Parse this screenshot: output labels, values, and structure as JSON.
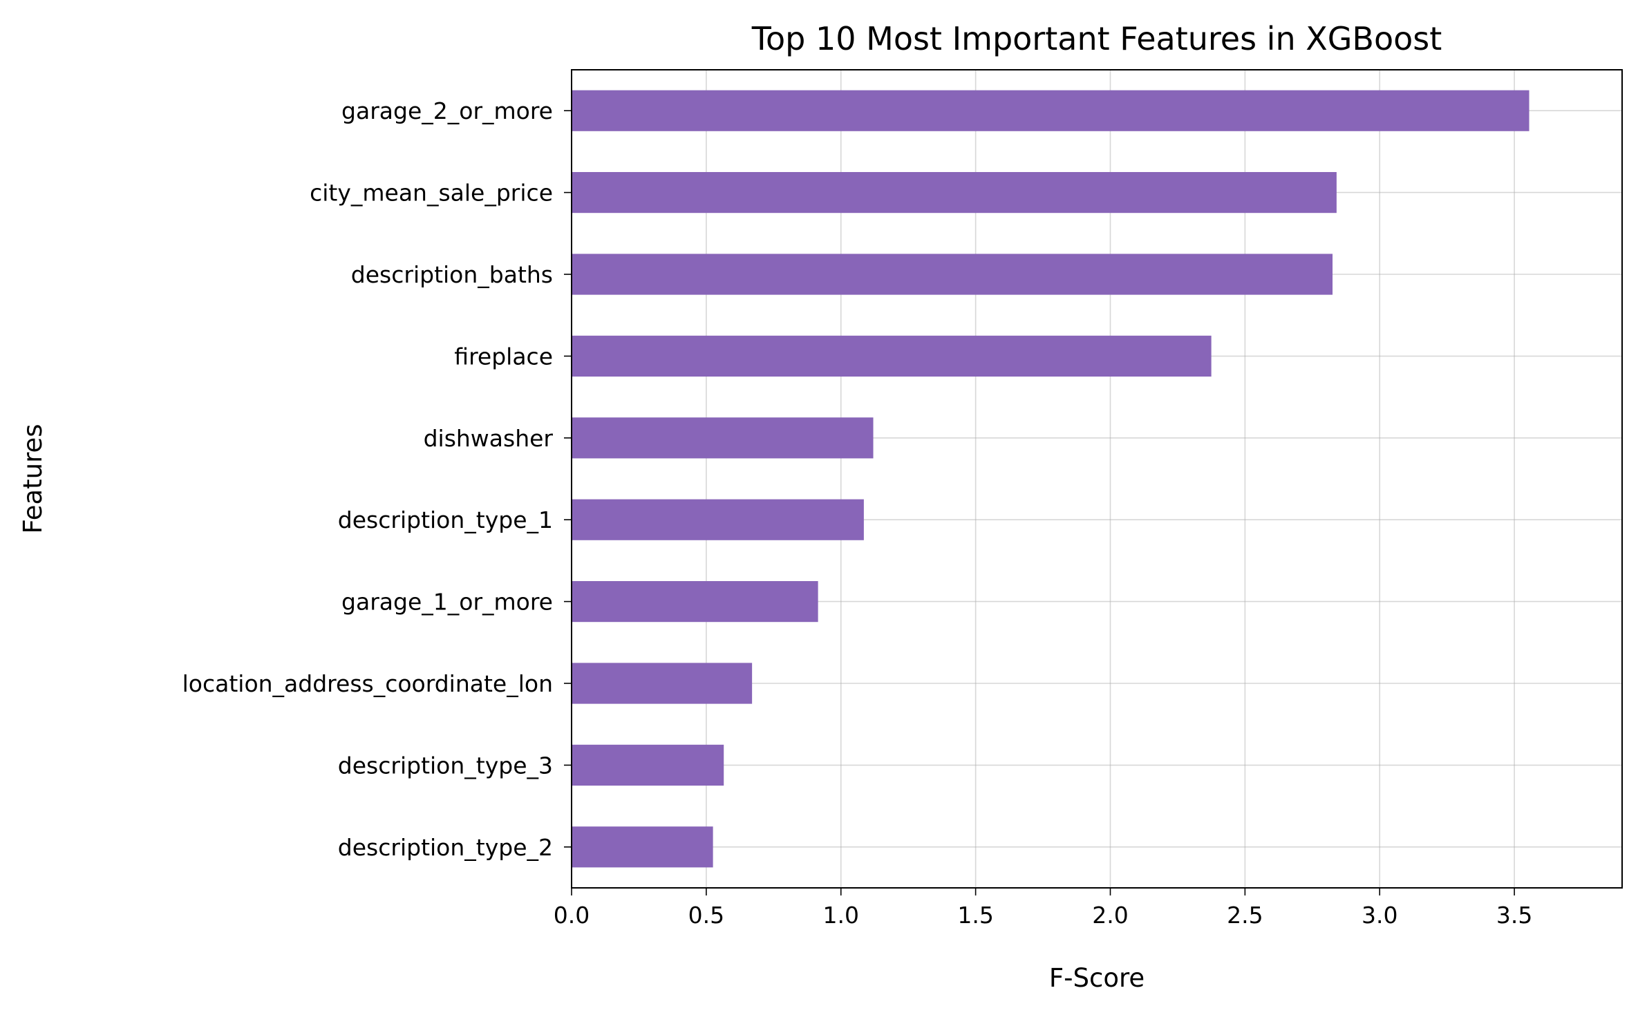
{
  "chart_data": {
    "type": "bar",
    "orientation": "horizontal",
    "title": "Top 10 Most Important Features in XGBoost",
    "xlabel": "F-Score",
    "ylabel": "Features",
    "categories": [
      "garage_2_or_more",
      "city_mean_sale_price",
      "description_baths",
      "fireplace",
      "dishwasher",
      "description_type_1",
      "garage_1_or_more",
      "location_address_coordinate_lon",
      "description_type_3",
      "description_type_2"
    ],
    "values": [
      3.555,
      2.84,
      2.825,
      2.375,
      1.12,
      1.085,
      0.915,
      0.67,
      0.565,
      0.525
    ],
    "xlim": [
      0,
      3.9
    ],
    "xticks": [
      "0.0",
      "0.5",
      "1.0",
      "1.5",
      "2.0",
      "2.5",
      "3.0",
      "3.5"
    ],
    "grid": true,
    "bar_color": "#8865b8"
  }
}
